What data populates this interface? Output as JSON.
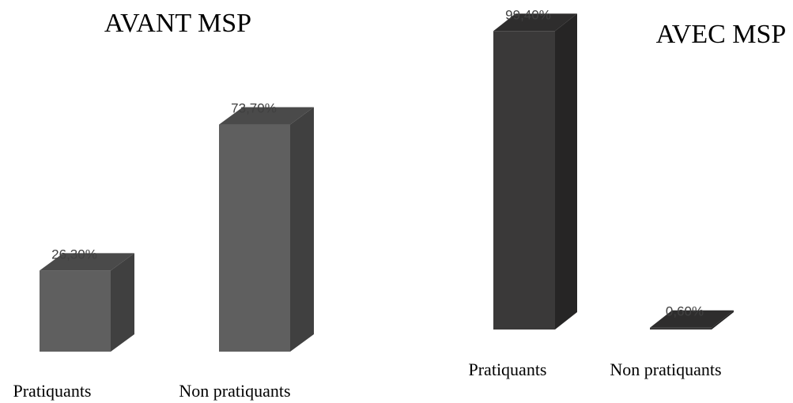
{
  "chart_data": [
    {
      "type": "bar",
      "title": "AVANT MSP",
      "categories": [
        "Pratiquants",
        "Non pratiquants"
      ],
      "values": [
        26.3,
        73.7
      ],
      "value_labels": [
        "26,30%",
        "73,70%"
      ],
      "ylim": [
        0,
        100
      ],
      "grid": false,
      "legend": "none",
      "colors": {
        "front": "#5f5f5f",
        "side": "#404040",
        "top": "#4a4a4a"
      }
    },
    {
      "type": "bar",
      "title": "AVEC MSP",
      "categories": [
        "Pratiquants",
        "Non pratiquants"
      ],
      "values": [
        99.4,
        0.6
      ],
      "value_labels": [
        "99,40%",
        "0,60%"
      ],
      "ylim": [
        0,
        100
      ],
      "grid": false,
      "legend": "none",
      "colors": {
        "front": "#3a3939",
        "side": "#262525",
        "top": "#2e2d2d"
      }
    }
  ]
}
